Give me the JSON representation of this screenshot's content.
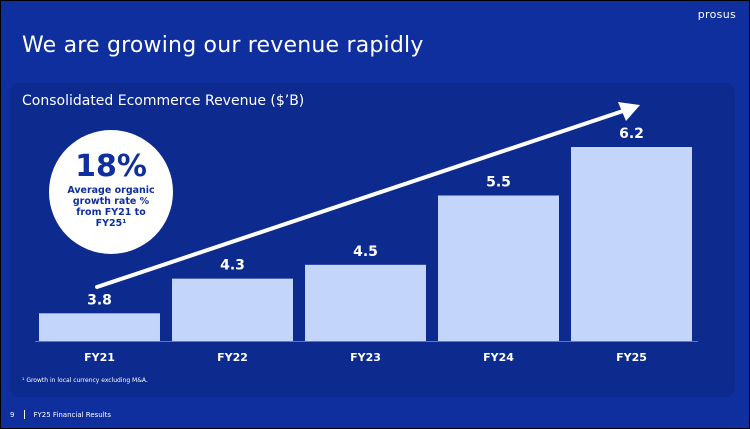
{
  "slide": {
    "title": "We are growing our revenue rapidly",
    "logo": "prosus",
    "page_number": "9",
    "footer_text": "FY25 Financial Results",
    "footnote": "¹ Growth in local currency excluding M&A."
  },
  "callout": {
    "value": "18%",
    "text": "Average organic growth rate % from FY21 to FY25¹"
  },
  "colors": {
    "background": "#0f2f9f",
    "panel": "#0d2a8e",
    "bar": "#c3d5fb",
    "text": "#ffffff"
  },
  "chart_data": {
    "type": "bar",
    "title": "Consolidated Ecommerce Revenue ($’B)",
    "xlabel": "",
    "ylabel": "",
    "categories": [
      "FY21",
      "FY22",
      "FY23",
      "FY24",
      "FY25"
    ],
    "values": [
      3.8,
      4.3,
      4.5,
      5.5,
      6.2
    ],
    "data_labels": [
      "3.8",
      "4.3",
      "4.5",
      "5.5",
      "6.2"
    ],
    "ylim": [
      3.4,
      6.2
    ],
    "grid": false,
    "legend": "none",
    "trend_arrow": true
  }
}
